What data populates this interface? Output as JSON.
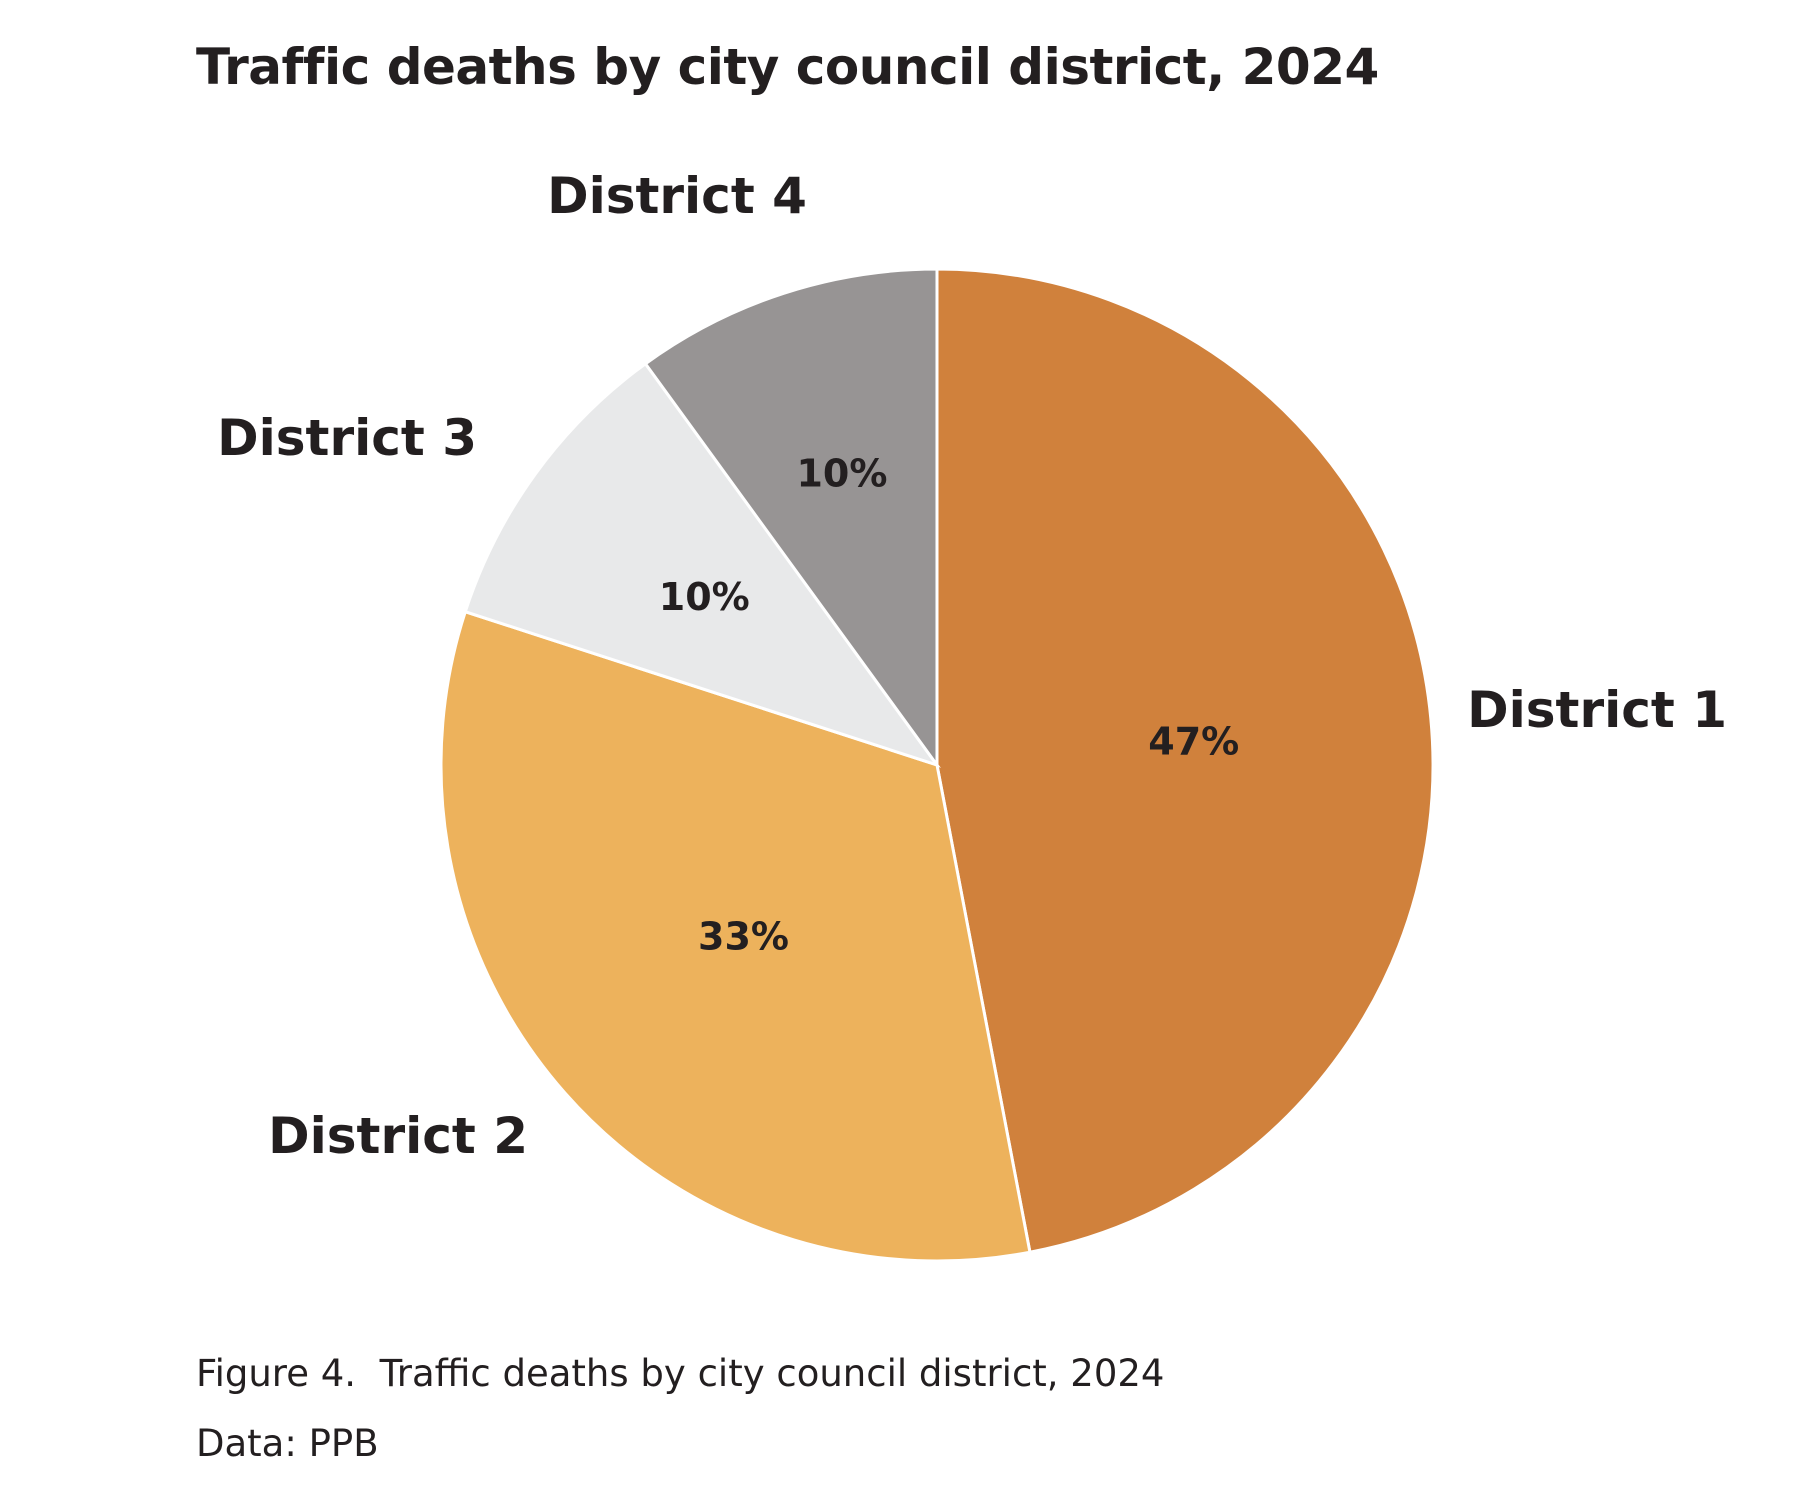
{
  "chart_data": {
    "type": "pie",
    "title": "Traffic deaths by city council district, 2024",
    "categories": [
      "District 1",
      "District 2",
      "District 3",
      "District 4"
    ],
    "values": [
      47,
      33,
      10,
      10
    ],
    "value_labels": [
      "47%",
      "33%",
      "10%",
      "10%"
    ],
    "colors": [
      "#d0813c",
      "#edb25c",
      "#e8e9ea",
      "#979494"
    ],
    "start_angle_deg": 0,
    "direction": "clockwise",
    "legend": "none"
  },
  "caption": {
    "figure_label": "Figure 4.",
    "text": "Traffic deaths by city council district, 2024"
  },
  "source": "Data: PPB"
}
